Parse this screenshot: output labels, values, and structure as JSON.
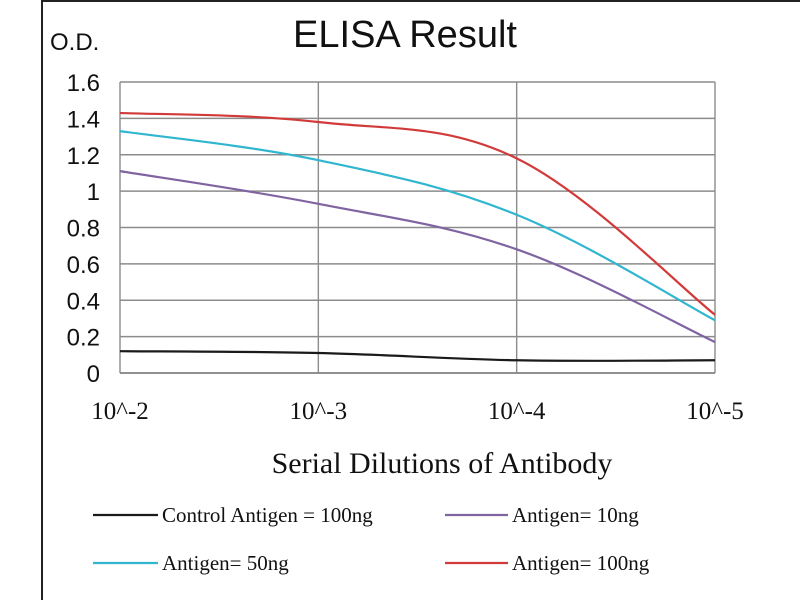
{
  "chart_data": {
    "type": "line",
    "title": "ELISA Result",
    "ylabel": "O.D.",
    "xlabel": "Serial Dilutions of Antibody",
    "x": [
      "10^-2",
      "10^-3",
      "10^-4",
      "10^-5"
    ],
    "ylim": [
      0,
      1.6
    ],
    "y_ticks": [
      "0",
      "0.2",
      "0.4",
      "0.6",
      "0.8",
      "1",
      "1.2",
      "1.4",
      "1.6"
    ],
    "grid": true,
    "legend_position": "bottom",
    "series": [
      {
        "name": "Control Antigen = 100ng",
        "color": "#1a1a1a",
        "values": [
          0.12,
          0.11,
          0.07,
          0.07
        ]
      },
      {
        "name": "Antigen= 10ng",
        "color": "#8064a2",
        "values": [
          1.11,
          0.93,
          0.68,
          0.17
        ]
      },
      {
        "name": "Antigen= 50ng",
        "color": "#31b6d0",
        "values": [
          1.33,
          1.17,
          0.87,
          0.29
        ]
      },
      {
        "name": "Antigen= 100ng",
        "color": "#d23a3a",
        "values": [
          1.43,
          1.38,
          1.18,
          0.32
        ]
      }
    ]
  }
}
